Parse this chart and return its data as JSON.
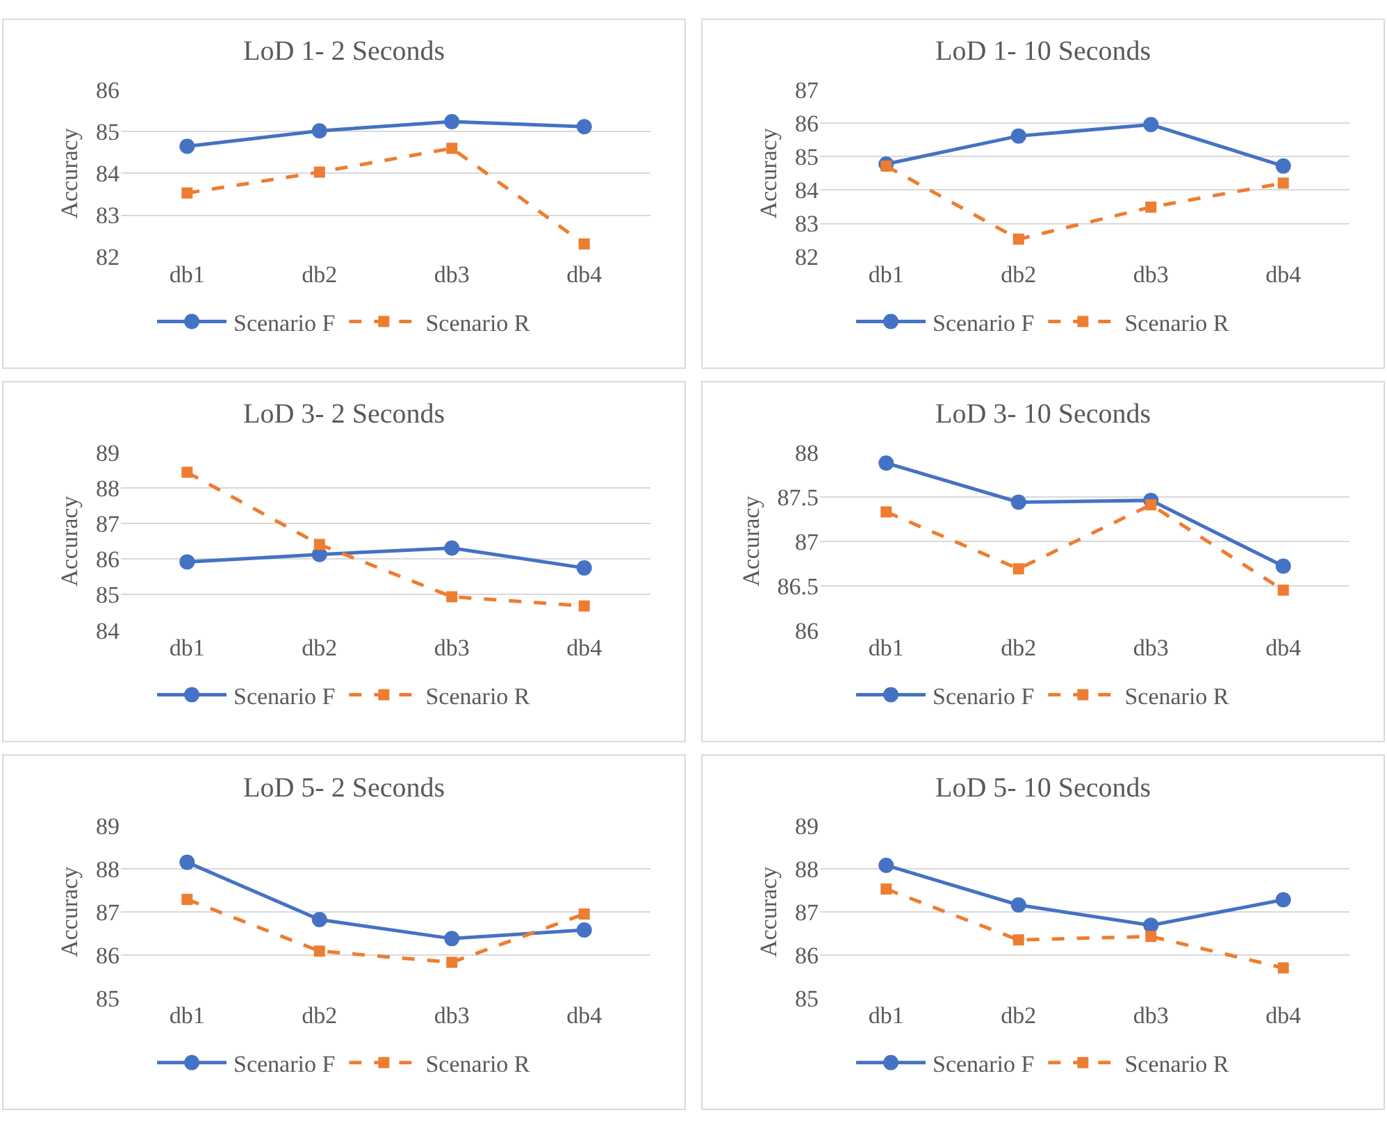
{
  "chart_data": [
    {
      "type": "line",
      "title": "LoD 1- 2 Seconds",
      "ylabel": "Accuracy",
      "categories": [
        "db1",
        "db2",
        "db3",
        "db4"
      ],
      "ylim": [
        82,
        86
      ],
      "yticks": [
        82,
        83,
        84,
        85,
        86
      ],
      "grid": "y",
      "legend": "bottom",
      "series": [
        {
          "name": "Scenario F",
          "color": "#4472c4",
          "values": [
            84.65,
            85.02,
            85.24,
            85.12
          ],
          "marker": "circle",
          "line_style": "solid"
        },
        {
          "name": "Scenario R",
          "color": "#ed7d31",
          "values": [
            83.53,
            84.03,
            84.6,
            82.31
          ],
          "marker": "square",
          "line_style": "dashed"
        }
      ]
    },
    {
      "type": "line",
      "title": "LoD 1- 10 Seconds",
      "ylabel": "Accuracy",
      "categories": [
        "db1",
        "db2",
        "db3",
        "db4"
      ],
      "ylim": [
        82,
        87
      ],
      "yticks": [
        82,
        83,
        84,
        85,
        86,
        87
      ],
      "grid": "y",
      "legend": "bottom",
      "series": [
        {
          "name": "Scenario F",
          "color": "#4472c4",
          "values": [
            84.78,
            85.62,
            85.96,
            84.72
          ],
          "marker": "circle",
          "line_style": "solid"
        },
        {
          "name": "Scenario R",
          "color": "#ed7d31",
          "values": [
            84.72,
            82.53,
            83.49,
            84.21
          ],
          "marker": "square",
          "line_style": "dashed"
        }
      ]
    },
    {
      "type": "line",
      "title": "LoD 3- 2 Seconds",
      "ylabel": "Accuracy",
      "categories": [
        "db1",
        "db2",
        "db3",
        "db4"
      ],
      "ylim": [
        84,
        89
      ],
      "yticks": [
        84,
        85,
        86,
        87,
        88,
        89
      ],
      "grid": "y",
      "legend": "bottom",
      "series": [
        {
          "name": "Scenario F",
          "color": "#4472c4",
          "values": [
            85.92,
            86.13,
            86.31,
            85.75
          ],
          "marker": "circle",
          "line_style": "solid"
        },
        {
          "name": "Scenario R",
          "color": "#ed7d31",
          "values": [
            88.44,
            86.41,
            84.94,
            84.68
          ],
          "marker": "square",
          "line_style": "dashed"
        }
      ]
    },
    {
      "type": "line",
      "title": "LoD 3- 10 Seconds",
      "ylabel": "Accuracy",
      "categories": [
        "db1",
        "db2",
        "db3",
        "db4"
      ],
      "ylim": [
        86,
        88
      ],
      "yticks": [
        86,
        86.5,
        87,
        87.5,
        88
      ],
      "grid": "y",
      "legend": "bottom",
      "series": [
        {
          "name": "Scenario F",
          "color": "#4472c4",
          "values": [
            87.88,
            87.44,
            87.46,
            86.72
          ],
          "marker": "circle",
          "line_style": "solid"
        },
        {
          "name": "Scenario R",
          "color": "#ed7d31",
          "values": [
            87.33,
            86.69,
            87.41,
            86.45
          ],
          "marker": "square",
          "line_style": "dashed"
        }
      ]
    },
    {
      "type": "line",
      "title": "LoD 5- 2 Seconds",
      "ylabel": "Accuracy",
      "categories": [
        "db1",
        "db2",
        "db3",
        "db4"
      ],
      "ylim": [
        85,
        89
      ],
      "yticks": [
        85,
        86,
        87,
        88,
        89
      ],
      "grid": "y",
      "legend": "bottom",
      "series": [
        {
          "name": "Scenario F",
          "color": "#4472c4",
          "values": [
            88.15,
            86.82,
            86.38,
            86.58
          ],
          "marker": "circle",
          "line_style": "solid"
        },
        {
          "name": "Scenario R",
          "color": "#ed7d31",
          "values": [
            87.29,
            86.09,
            85.83,
            86.95
          ],
          "marker": "square",
          "line_style": "dashed"
        }
      ]
    },
    {
      "type": "line",
      "title": "LoD 5- 10 Seconds",
      "ylabel": "Accuracy",
      "categories": [
        "db1",
        "db2",
        "db3",
        "db4"
      ],
      "ylim": [
        85,
        89
      ],
      "yticks": [
        85,
        86,
        87,
        88,
        89
      ],
      "grid": "y",
      "legend": "bottom",
      "series": [
        {
          "name": "Scenario F",
          "color": "#4472c4",
          "values": [
            88.08,
            87.16,
            86.69,
            87.28
          ],
          "marker": "circle",
          "line_style": "solid"
        },
        {
          "name": "Scenario R",
          "color": "#ed7d31",
          "values": [
            87.53,
            86.35,
            86.43,
            85.7
          ],
          "marker": "square",
          "line_style": "dashed"
        }
      ]
    }
  ]
}
